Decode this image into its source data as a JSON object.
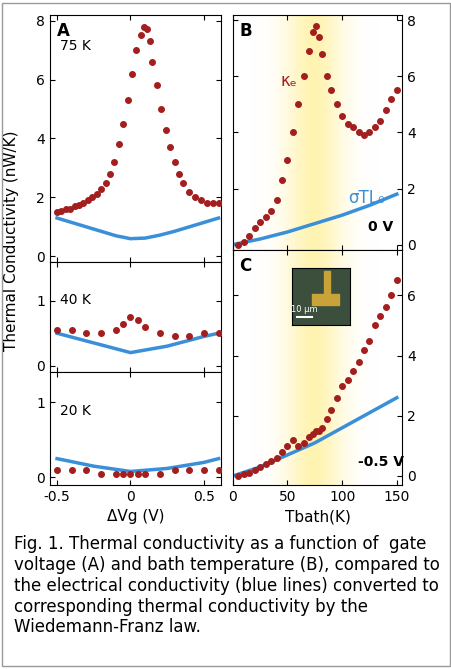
{
  "ylabel": "Thermal Conductivity (nW/K)",
  "caption": "Fig. 1. Thermal conductivity as a function of  gate voltage (A) and bath temperature (B), compared to the electrical conductivity (blue lines) converted to corresponding thermal conductivity by the  Wiedemann-Franz law.",
  "chart_data": [
    {
      "type": "scatter",
      "panel": "A",
      "annotation": "75 K",
      "tick_labels": "y",
      "xlim": [
        -0.55,
        0.62
      ],
      "xticks": [
        -0.5,
        0,
        0.5
      ],
      "ylim": [
        -0.2,
        8.2
      ],
      "yticks": [
        0,
        2,
        4,
        6,
        8
      ],
      "series": [
        {
          "type": "scatter",
          "color": "#a31f1f",
          "x": [
            -0.5,
            -0.47,
            -0.44,
            -0.41,
            -0.38,
            -0.35,
            -0.32,
            -0.29,
            -0.26,
            -0.23,
            -0.2,
            -0.17,
            -0.14,
            -0.11,
            -0.08,
            -0.05,
            -0.02,
            0.01,
            0.04,
            0.07,
            0.09,
            0.11,
            0.13,
            0.15,
            0.18,
            0.21,
            0.24,
            0.27,
            0.3,
            0.33,
            0.36,
            0.4,
            0.44,
            0.48,
            0.52,
            0.56,
            0.6
          ],
          "values": [
            1.5,
            1.55,
            1.6,
            1.6,
            1.7,
            1.75,
            1.8,
            1.9,
            2.0,
            2.1,
            2.3,
            2.5,
            2.8,
            3.2,
            3.8,
            4.5,
            5.3,
            6.2,
            7.0,
            7.5,
            7.8,
            7.7,
            7.3,
            6.6,
            5.8,
            5.0,
            4.3,
            3.7,
            3.2,
            2.8,
            2.5,
            2.2,
            2.0,
            1.9,
            1.8,
            1.8,
            1.8
          ]
        },
        {
          "type": "line",
          "color": "#3a8fd9",
          "x": [
            -0.5,
            -0.4,
            -0.3,
            -0.2,
            -0.1,
            0,
            0.1,
            0.2,
            0.3,
            0.4,
            0.5,
            0.6
          ],
          "values": [
            1.3,
            1.15,
            1.0,
            0.85,
            0.7,
            0.6,
            0.62,
            0.72,
            0.85,
            1.0,
            1.15,
            1.3
          ]
        }
      ]
    },
    {
      "type": "scatter",
      "annotation": "40 K",
      "tick_labels": "y",
      "xlim": [
        -0.55,
        0.62
      ],
      "xticks": [
        -0.5,
        0,
        0.5
      ],
      "ylim": [
        -0.1,
        1.6
      ],
      "yticks": [
        0,
        1
      ],
      "series": [
        {
          "type": "scatter",
          "color": "#a31f1f",
          "x": [
            -0.5,
            -0.4,
            -0.3,
            -0.2,
            -0.1,
            -0.05,
            0,
            0.05,
            0.1,
            0.2,
            0.3,
            0.4,
            0.5,
            0.6
          ],
          "values": [
            0.55,
            0.55,
            0.5,
            0.5,
            0.55,
            0.65,
            0.75,
            0.7,
            0.6,
            0.5,
            0.45,
            0.45,
            0.5,
            0.5
          ]
        },
        {
          "type": "line",
          "color": "#3a8fd9",
          "x": [
            -0.5,
            -0.25,
            0,
            0.25,
            0.5,
            0.6
          ],
          "values": [
            0.5,
            0.35,
            0.2,
            0.3,
            0.45,
            0.5
          ]
        }
      ]
    },
    {
      "type": "scatter",
      "annotation": "20 K",
      "xlabel": "ΔVg (V)",
      "xlim": [
        -0.55,
        0.62
      ],
      "xticks": [
        -0.5,
        0,
        0.5
      ],
      "ylim": [
        -0.1,
        1.4
      ],
      "yticks": [
        0,
        1
      ],
      "series": [
        {
          "type": "scatter",
          "color": "#a31f1f",
          "x": [
            -0.5,
            -0.4,
            -0.3,
            -0.2,
            -0.1,
            -0.05,
            0,
            0.05,
            0.1,
            0.2,
            0.3,
            0.4,
            0.5,
            0.6
          ],
          "values": [
            0.1,
            0.1,
            0.1,
            0.05,
            0.05,
            0.05,
            0.05,
            0.05,
            0.05,
            0.05,
            0.1,
            0.1,
            0.1,
            0.1
          ]
        },
        {
          "type": "line",
          "color": "#3a8fd9",
          "x": [
            -0.5,
            -0.25,
            0,
            0.25,
            0.5,
            0.6
          ],
          "values": [
            0.25,
            0.15,
            0.08,
            0.12,
            0.2,
            0.25
          ]
        }
      ]
    },
    {
      "type": "scatter",
      "panel": "B",
      "annotation": "0 V",
      "tick_labels": "y",
      "xlim": [
        0,
        155
      ],
      "xticks": [
        0,
        50,
        100,
        150
      ],
      "ylim": [
        -0.2,
        8.2
      ],
      "yticks": [
        0,
        2,
        4,
        6,
        8
      ],
      "series": [
        {
          "type": "scatter",
          "name": "κₑ",
          "color": "#a31f1f",
          "x": [
            5,
            10,
            15,
            20,
            25,
            30,
            35,
            40,
            45,
            50,
            55,
            60,
            65,
            70,
            73,
            76,
            79,
            82,
            86,
            90,
            95,
            100,
            105,
            110,
            115,
            120,
            125,
            130,
            135,
            140,
            145,
            150
          ],
          "values": [
            0,
            0.1,
            0.3,
            0.6,
            0.8,
            1.0,
            1.2,
            1.6,
            2.3,
            3.0,
            4.0,
            5.0,
            6.0,
            6.9,
            7.6,
            7.8,
            7.4,
            6.8,
            6.0,
            5.5,
            5.0,
            4.6,
            4.3,
            4.2,
            4.0,
            3.9,
            4.0,
            4.2,
            4.4,
            4.8,
            5.2,
            5.5
          ]
        },
        {
          "type": "line",
          "name": "σTL₀",
          "color": "#3a8fd9",
          "x": [
            0,
            25,
            50,
            75,
            100,
            125,
            150
          ],
          "values": [
            0,
            0.2,
            0.45,
            0.75,
            1.05,
            1.4,
            1.8
          ]
        }
      ]
    },
    {
      "type": "scatter",
      "panel": "C",
      "annotation": "-0.5 V",
      "xlabel": "Tbath(K)",
      "inset_scale": "10 μm",
      "xlim": [
        0,
        155
      ],
      "xticks": [
        0,
        50,
        100,
        150
      ],
      "ylim": [
        -0.3,
        7.5
      ],
      "yticks": [
        0,
        2,
        4,
        6
      ],
      "series": [
        {
          "type": "scatter",
          "color": "#a31f1f",
          "x": [
            5,
            10,
            15,
            20,
            25,
            30,
            35,
            40,
            45,
            50,
            55,
            60,
            65,
            70,
            73,
            76,
            79,
            82,
            86,
            90,
            95,
            100,
            105,
            110,
            115,
            120,
            125,
            130,
            135,
            140,
            145,
            150
          ],
          "values": [
            0,
            0.05,
            0.1,
            0.2,
            0.3,
            0.4,
            0.5,
            0.6,
            0.8,
            1.0,
            1.2,
            1.0,
            1.1,
            1.3,
            1.4,
            1.5,
            1.5,
            1.6,
            1.9,
            2.2,
            2.6,
            3.0,
            3.2,
            3.5,
            3.8,
            4.2,
            4.5,
            5.0,
            5.3,
            5.6,
            6.0,
            6.5
          ]
        },
        {
          "type": "line",
          "color": "#3a8fd9",
          "x": [
            0,
            25,
            50,
            75,
            100,
            125,
            150
          ],
          "values": [
            0,
            0.3,
            0.7,
            1.1,
            1.6,
            2.1,
            2.6
          ]
        }
      ]
    }
  ]
}
